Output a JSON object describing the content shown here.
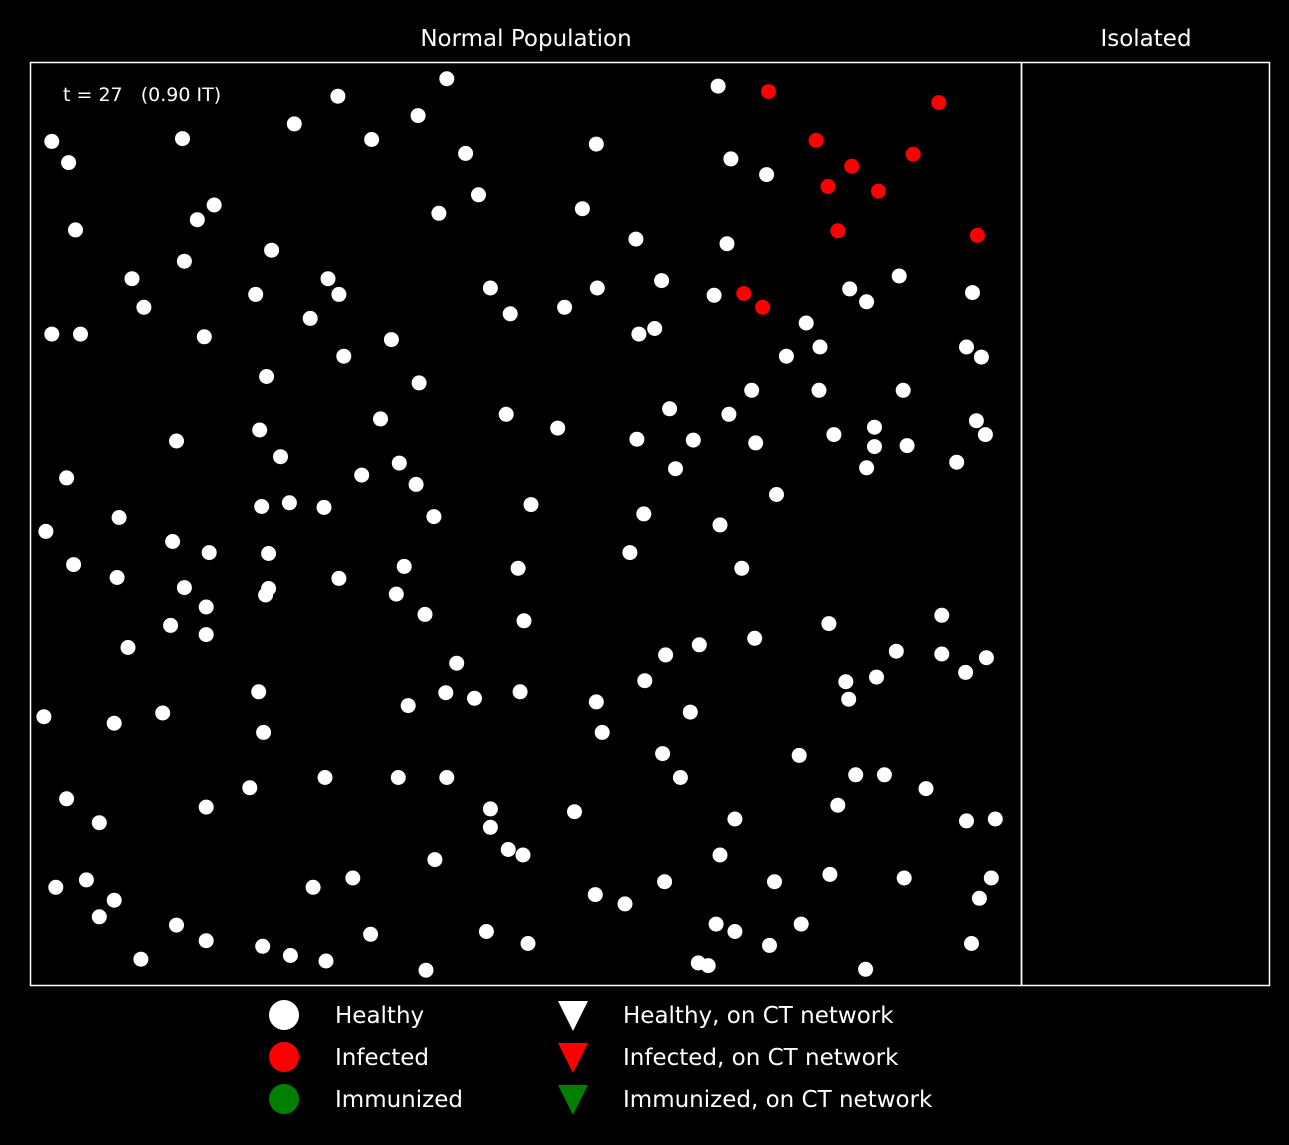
{
  "colors": {
    "background": "#000000",
    "healthy": "#ffffff",
    "infected": "#ff0000",
    "immunized": "#008000",
    "frame": "#ffffff"
  },
  "chart_data": {
    "type": "scatter",
    "panels": [
      {
        "title": "Normal Population",
        "xlim": [
          0,
          1
        ],
        "ylim": [
          0,
          1
        ]
      },
      {
        "title": "Isolated"
      }
    ],
    "annotation": "t = 27   (0.90 IT)",
    "grid": false,
    "legend_placement": "bottom-center",
    "legend": [
      {
        "label": "Healthy",
        "marker": "circle",
        "color": "#ffffff"
      },
      {
        "label": "Infected",
        "marker": "circle",
        "color": "#ff0000"
      },
      {
        "label": "Immunized",
        "marker": "circle",
        "color": "#008000"
      },
      {
        "label": "Healthy, on CT network",
        "marker": "triangle-down",
        "color": "#ffffff"
      },
      {
        "label": "Infected, on CT network",
        "marker": "triangle-down",
        "color": "#ff0000"
      },
      {
        "label": "Immunized, on CT network",
        "marker": "triangle-down",
        "color": "#008000"
      }
    ],
    "series": [
      {
        "status": "infected",
        "points": [
          [
            0.745,
            0.969
          ],
          [
            0.917,
            0.957
          ],
          [
            0.793,
            0.916
          ],
          [
            0.829,
            0.888
          ],
          [
            0.891,
            0.901
          ],
          [
            0.805,
            0.866
          ],
          [
            0.856,
            0.861
          ],
          [
            0.815,
            0.818
          ],
          [
            0.956,
            0.813
          ],
          [
            0.72,
            0.75
          ],
          [
            0.739,
            0.735
          ]
        ]
      },
      {
        "status": "healthy",
        "points": [
          [
            0.42,
            0.983
          ],
          [
            0.694,
            0.975
          ],
          [
            0.31,
            0.964
          ],
          [
            0.391,
            0.943
          ],
          [
            0.266,
            0.934
          ],
          [
            0.021,
            0.915
          ],
          [
            0.153,
            0.918
          ],
          [
            0.344,
            0.917
          ],
          [
            0.571,
            0.912
          ],
          [
            0.439,
            0.902
          ],
          [
            0.038,
            0.892
          ],
          [
            0.707,
            0.896
          ],
          [
            0.743,
            0.879
          ],
          [
            0.452,
            0.857
          ],
          [
            0.185,
            0.846
          ],
          [
            0.168,
            0.83
          ],
          [
            0.412,
            0.837
          ],
          [
            0.557,
            0.842
          ],
          [
            0.045,
            0.819
          ],
          [
            0.611,
            0.809
          ],
          [
            0.703,
            0.804
          ],
          [
            0.243,
            0.797
          ],
          [
            0.155,
            0.785
          ],
          [
            0.102,
            0.766
          ],
          [
            0.3,
            0.766
          ],
          [
            0.637,
            0.764
          ],
          [
            0.877,
            0.769
          ],
          [
            0.464,
            0.756
          ],
          [
            0.572,
            0.756
          ],
          [
            0.227,
            0.749
          ],
          [
            0.311,
            0.749
          ],
          [
            0.827,
            0.755
          ],
          [
            0.951,
            0.751
          ],
          [
            0.69,
            0.748
          ],
          [
            0.844,
            0.741
          ],
          [
            0.114,
            0.735
          ],
          [
            0.539,
            0.735
          ],
          [
            0.484,
            0.728
          ],
          [
            0.282,
            0.723
          ],
          [
            0.783,
            0.718
          ],
          [
            0.63,
            0.712
          ],
          [
            0.021,
            0.706
          ],
          [
            0.05,
            0.706
          ],
          [
            0.614,
            0.706
          ],
          [
            0.175,
            0.703
          ],
          [
            0.364,
            0.7
          ],
          [
            0.797,
            0.692
          ],
          [
            0.945,
            0.692
          ],
          [
            0.316,
            0.682
          ],
          [
            0.763,
            0.682
          ],
          [
            0.96,
            0.681
          ],
          [
            0.238,
            0.66
          ],
          [
            0.392,
            0.653
          ],
          [
            0.728,
            0.645
          ],
          [
            0.796,
            0.645
          ],
          [
            0.881,
            0.645
          ],
          [
            0.645,
            0.625
          ],
          [
            0.353,
            0.614
          ],
          [
            0.48,
            0.619
          ],
          [
            0.705,
            0.619
          ],
          [
            0.955,
            0.612
          ],
          [
            0.231,
            0.602
          ],
          [
            0.532,
            0.604
          ],
          [
            0.612,
            0.592
          ],
          [
            0.811,
            0.597
          ],
          [
            0.852,
            0.605
          ],
          [
            0.964,
            0.597
          ],
          [
            0.147,
            0.59
          ],
          [
            0.669,
            0.591
          ],
          [
            0.732,
            0.588
          ],
          [
            0.852,
            0.584
          ],
          [
            0.885,
            0.585
          ],
          [
            0.252,
            0.573
          ],
          [
            0.372,
            0.566
          ],
          [
            0.844,
            0.561
          ],
          [
            0.935,
            0.567
          ],
          [
            0.651,
            0.56
          ],
          [
            0.036,
            0.55
          ],
          [
            0.334,
            0.553
          ],
          [
            0.389,
            0.543
          ],
          [
            0.753,
            0.532
          ],
          [
            0.233,
            0.519
          ],
          [
            0.261,
            0.523
          ],
          [
            0.296,
            0.518
          ],
          [
            0.505,
            0.521
          ],
          [
            0.089,
            0.507
          ],
          [
            0.407,
            0.508
          ],
          [
            0.619,
            0.511
          ],
          [
            0.696,
            0.499
          ],
          [
            0.015,
            0.492
          ],
          [
            0.143,
            0.481
          ],
          [
            0.24,
            0.468
          ],
          [
            0.18,
            0.469
          ],
          [
            0.605,
            0.469
          ],
          [
            0.043,
            0.456
          ],
          [
            0.087,
            0.442
          ],
          [
            0.24,
            0.43
          ],
          [
            0.311,
            0.441
          ],
          [
            0.377,
            0.454
          ],
          [
            0.492,
            0.452
          ],
          [
            0.718,
            0.452
          ],
          [
            0.155,
            0.431
          ],
          [
            0.369,
            0.424
          ],
          [
            0.237,
            0.423
          ],
          [
            0.177,
            0.41
          ],
          [
            0.398,
            0.402
          ],
          [
            0.141,
            0.39
          ],
          [
            0.177,
            0.38
          ],
          [
            0.498,
            0.395
          ],
          [
            0.806,
            0.392
          ],
          [
            0.92,
            0.401
          ],
          [
            0.731,
            0.376
          ],
          [
            0.098,
            0.366
          ],
          [
            0.641,
            0.358
          ],
          [
            0.675,
            0.369
          ],
          [
            0.43,
            0.349
          ],
          [
            0.874,
            0.362
          ],
          [
            0.92,
            0.359
          ],
          [
            0.965,
            0.355
          ],
          [
            0.62,
            0.33
          ],
          [
            0.823,
            0.329
          ],
          [
            0.854,
            0.334
          ],
          [
            0.944,
            0.339
          ],
          [
            0.23,
            0.318
          ],
          [
            0.419,
            0.317
          ],
          [
            0.448,
            0.311
          ],
          [
            0.494,
            0.318
          ],
          [
            0.826,
            0.31
          ],
          [
            0.571,
            0.307
          ],
          [
            0.381,
            0.303
          ],
          [
            0.013,
            0.291
          ],
          [
            0.084,
            0.284
          ],
          [
            0.133,
            0.295
          ],
          [
            0.666,
            0.296
          ],
          [
            0.235,
            0.274
          ],
          [
            0.577,
            0.274
          ],
          [
            0.638,
            0.251
          ],
          [
            0.776,
            0.249
          ],
          [
            0.656,
            0.225
          ],
          [
            0.833,
            0.228
          ],
          [
            0.862,
            0.228
          ],
          [
            0.221,
            0.214
          ],
          [
            0.297,
            0.225
          ],
          [
            0.371,
            0.225
          ],
          [
            0.42,
            0.225
          ],
          [
            0.904,
            0.213
          ],
          [
            0.036,
            0.202
          ],
          [
            0.177,
            0.193
          ],
          [
            0.464,
            0.191
          ],
          [
            0.549,
            0.188
          ],
          [
            0.815,
            0.195
          ],
          [
            0.069,
            0.176
          ],
          [
            0.464,
            0.171
          ],
          [
            0.711,
            0.18
          ],
          [
            0.974,
            0.18
          ],
          [
            0.945,
            0.178
          ],
          [
            0.482,
            0.147
          ],
          [
            0.497,
            0.141
          ],
          [
            0.408,
            0.136
          ],
          [
            0.696,
            0.141
          ],
          [
            0.025,
            0.106
          ],
          [
            0.056,
            0.114
          ],
          [
            0.285,
            0.106
          ],
          [
            0.325,
            0.116
          ],
          [
            0.57,
            0.098
          ],
          [
            0.64,
            0.112
          ],
          [
            0.751,
            0.112
          ],
          [
            0.807,
            0.12
          ],
          [
            0.882,
            0.116
          ],
          [
            0.97,
            0.116
          ],
          [
            0.6,
            0.088
          ],
          [
            0.084,
            0.092
          ],
          [
            0.069,
            0.074
          ],
          [
            0.958,
            0.094
          ],
          [
            0.147,
            0.065
          ],
          [
            0.343,
            0.055
          ],
          [
            0.46,
            0.058
          ],
          [
            0.692,
            0.066
          ],
          [
            0.711,
            0.058
          ],
          [
            0.778,
            0.066
          ],
          [
            0.177,
            0.048
          ],
          [
            0.234,
            0.042
          ],
          [
            0.502,
            0.045
          ],
          [
            0.746,
            0.043
          ],
          [
            0.95,
            0.045
          ],
          [
            0.111,
            0.028
          ],
          [
            0.262,
            0.032
          ],
          [
            0.298,
            0.026
          ],
          [
            0.674,
            0.024
          ],
          [
            0.684,
            0.021
          ],
          [
            0.399,
            0.016
          ],
          [
            0.843,
            0.017
          ]
        ]
      }
    ]
  }
}
